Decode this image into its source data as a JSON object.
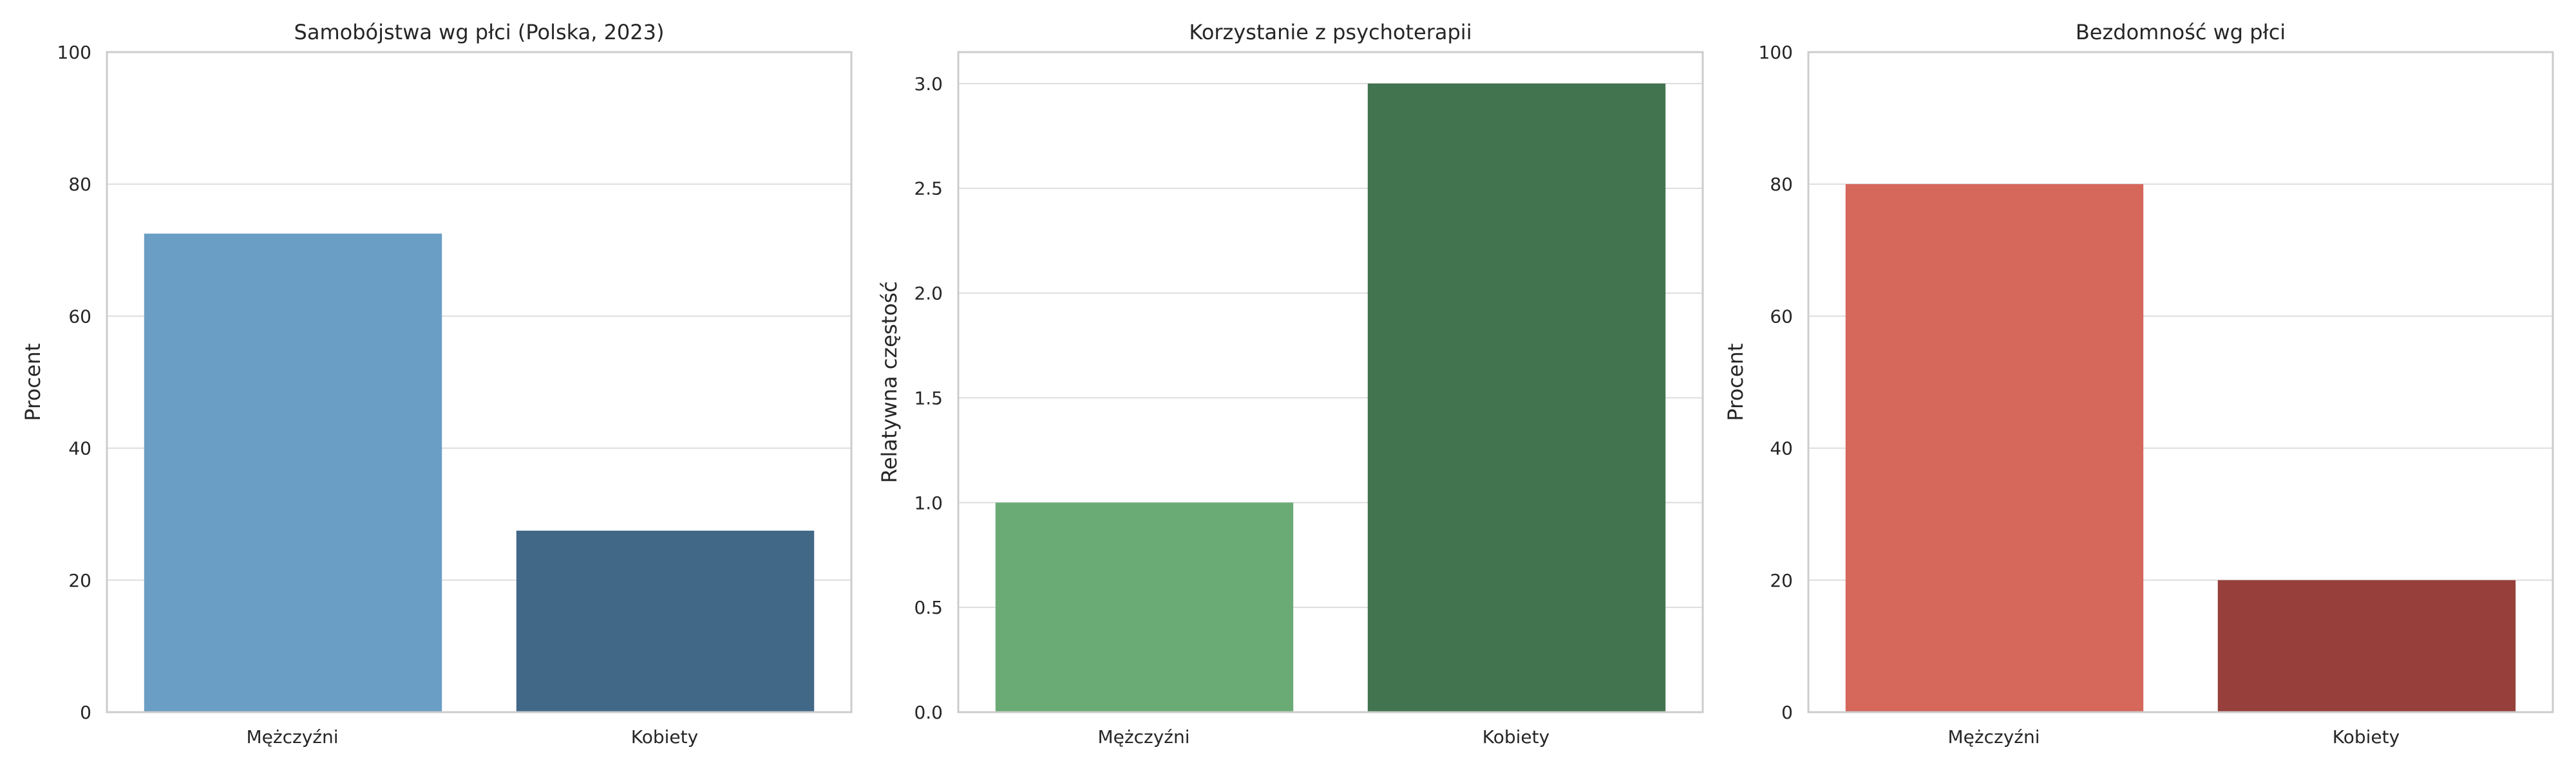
{
  "chart_data": [
    {
      "type": "bar",
      "title": "Samobójstwa wg płci (Polska, 2023)",
      "xlabel": "",
      "ylabel": "Procent",
      "categories": [
        "Mężczyźni",
        "Kobiety"
      ],
      "values": [
        72.5,
        27.5
      ],
      "colors": [
        "#6a9ec4",
        "#426888"
      ],
      "ylim": [
        0,
        100
      ],
      "yticks": [
        "0",
        "20",
        "40",
        "60",
        "80",
        "100"
      ],
      "grid": true
    },
    {
      "type": "bar",
      "title": "Korzystanie z psychoterapii",
      "xlabel": "",
      "ylabel": "Relatywna częstość",
      "categories": [
        "Mężczyźni",
        "Kobiety"
      ],
      "values": [
        1.0,
        3.0
      ],
      "colors": [
        "#6aab75",
        "#41744f"
      ],
      "ylim": [
        0,
        3.15
      ],
      "yticks": [
        "0.0",
        "0.5",
        "1.0",
        "1.5",
        "2.0",
        "2.5",
        "3.0"
      ],
      "grid": true
    },
    {
      "type": "bar",
      "title": "Bezdomność wg płci",
      "xlabel": "",
      "ylabel": "Procent",
      "categories": [
        "Mężczyźni",
        "Kobiety"
      ],
      "values": [
        80,
        20
      ],
      "colors": [
        "#d5675b",
        "#963f3b"
      ],
      "ylim": [
        0,
        100
      ],
      "yticks": [
        "0",
        "20",
        "40",
        "60",
        "80",
        "100"
      ],
      "grid": true
    }
  ]
}
